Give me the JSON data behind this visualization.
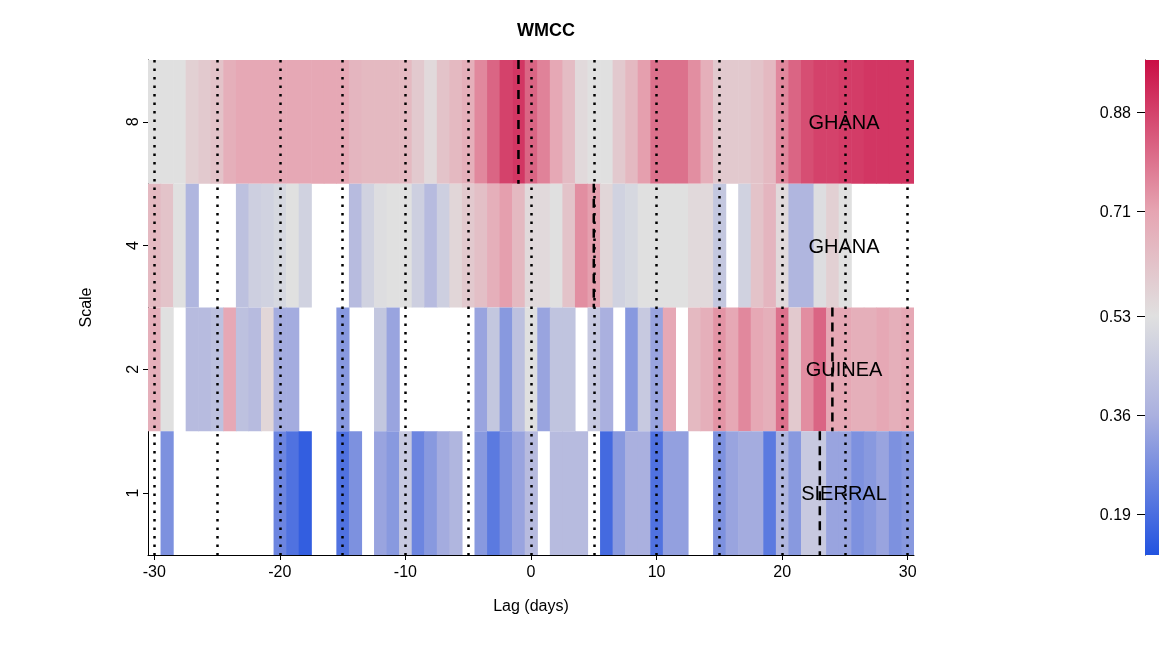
{
  "chart_data": {
    "type": "heatmap",
    "title": "WMCC",
    "xlabel": "Lag (days)",
    "ylabel": "Scale",
    "x": [
      -30,
      -29,
      -28,
      -27,
      -26,
      -25,
      -24,
      -23,
      -22,
      -21,
      -20,
      -19,
      -18,
      -17,
      -16,
      -15,
      -14,
      -13,
      -12,
      -11,
      -10,
      -9,
      -8,
      -7,
      -6,
      -5,
      -4,
      -3,
      -2,
      -1,
      0,
      1,
      2,
      3,
      4,
      5,
      6,
      7,
      8,
      9,
      10,
      11,
      12,
      13,
      14,
      15,
      16,
      17,
      18,
      19,
      20,
      21,
      22,
      23,
      24,
      25,
      26,
      27,
      28,
      29,
      30
    ],
    "xlim": [
      -30.5,
      30.5
    ],
    "xticks": [
      -30,
      -20,
      -10,
      0,
      10,
      20,
      30
    ],
    "y_categories": [
      "8",
      "4",
      "2",
      "1"
    ],
    "cells": [
      [
        0.53,
        0.53,
        0.53,
        0.58,
        0.6,
        0.62,
        0.68,
        0.7,
        0.7,
        0.7,
        0.7,
        0.7,
        0.7,
        0.7,
        0.7,
        0.7,
        0.66,
        0.65,
        0.65,
        0.65,
        0.65,
        0.6,
        0.55,
        0.62,
        0.65,
        0.68,
        0.76,
        0.82,
        0.88,
        0.9,
        0.82,
        0.77,
        0.7,
        0.64,
        0.55,
        0.53,
        0.53,
        0.6,
        0.65,
        0.72,
        0.8,
        0.8,
        0.8,
        0.75,
        0.68,
        0.6,
        0.6,
        0.6,
        0.62,
        0.65,
        0.76,
        0.82,
        0.86,
        0.88,
        0.88,
        0.89,
        0.89,
        0.9,
        0.9,
        0.9,
        0.9
      ],
      [
        0.65,
        0.62,
        0.53,
        0.38,
        null,
        null,
        null,
        0.42,
        0.47,
        0.48,
        0.5,
        0.53,
        0.48,
        null,
        null,
        null,
        0.4,
        0.48,
        0.52,
        0.53,
        0.53,
        0.47,
        0.4,
        0.47,
        0.56,
        0.6,
        0.63,
        0.68,
        0.72,
        0.65,
        0.55,
        0.55,
        0.53,
        0.62,
        0.75,
        0.72,
        0.56,
        0.48,
        0.5,
        0.53,
        0.53,
        0.53,
        0.53,
        0.55,
        0.55,
        0.44,
        null,
        0.48,
        0.62,
        0.66,
        0.55,
        0.38,
        0.38,
        0.52,
        0.58,
        0.53,
        null,
        null,
        null,
        null,
        null
      ],
      [
        0.68,
        0.53,
        null,
        0.4,
        0.4,
        0.42,
        0.7,
        0.42,
        0.4,
        0.56,
        0.35,
        0.35,
        null,
        null,
        null,
        0.3,
        null,
        null,
        0.44,
        0.33,
        null,
        null,
        null,
        null,
        null,
        null,
        0.33,
        0.44,
        0.3,
        0.42,
        0.53,
        0.33,
        0.43,
        0.43,
        null,
        0.45,
        0.36,
        null,
        0.3,
        0.45,
        0.33,
        0.7,
        null,
        0.65,
        0.68,
        0.74,
        0.7,
        0.76,
        0.7,
        0.68,
        0.8,
        0.6,
        0.75,
        0.82,
        0.7,
        0.7,
        0.68,
        0.68,
        0.7,
        0.68,
        0.7
      ],
      [
        null,
        0.28,
        null,
        null,
        null,
        null,
        null,
        null,
        null,
        null,
        0.25,
        0.2,
        0.15,
        null,
        null,
        0.2,
        0.28,
        null,
        0.33,
        0.3,
        0.45,
        0.25,
        0.3,
        0.35,
        0.38,
        null,
        0.3,
        0.22,
        0.28,
        0.33,
        0.4,
        null,
        0.4,
        0.4,
        0.4,
        null,
        0.18,
        0.3,
        0.36,
        0.36,
        0.2,
        0.32,
        0.32,
        null,
        null,
        0.28,
        0.33,
        0.35,
        0.35,
        0.22,
        0.38,
        0.3,
        0.45,
        0.45,
        0.33,
        0.33,
        0.28,
        0.3,
        0.33,
        0.28,
        0.3
      ]
    ],
    "clim": [
      0.12,
      0.97
    ],
    "cticks": [
      0.19,
      0.36,
      0.53,
      0.71,
      0.88
    ],
    "colors": [
      "#4a6ee0",
      "#aab0df",
      "#e0e0e0",
      "#e6a5b2",
      "#d4426b"
    ],
    "ref_lines": [
      {
        "axis": "x",
        "value": -1,
        "line_style": "dashed",
        "color": "#000000"
      },
      {
        "axis": "x",
        "value": 5,
        "line_style": "dashed",
        "color": "#000000"
      },
      {
        "axis": "x",
        "value": 24,
        "line_style": "dashed",
        "color": "#000000"
      },
      {
        "axis": "x",
        "value": 23,
        "line_style": "dashed",
        "color": "#000000"
      },
      {
        "axis": "x",
        "value": -30,
        "line_style": "dotted",
        "color": "#000000"
      },
      {
        "axis": "x",
        "value": -25,
        "line_style": "dotted",
        "color": "#000000"
      },
      {
        "axis": "x",
        "value": -20,
        "line_style": "dotted",
        "color": "#000000"
      },
      {
        "axis": "x",
        "value": -15,
        "line_style": "dotted",
        "color": "#000000"
      },
      {
        "axis": "x",
        "value": -10,
        "line_style": "dotted",
        "color": "#000000"
      },
      {
        "axis": "x",
        "value": -5,
        "line_style": "dotted",
        "color": "#000000"
      },
      {
        "axis": "x",
        "value": 0,
        "line_style": "dotted",
        "color": "#000000"
      },
      {
        "axis": "x",
        "value": 5,
        "line_style": "dotted",
        "color": "#000000"
      },
      {
        "axis": "x",
        "value": 10,
        "line_style": "dotted",
        "color": "#000000"
      },
      {
        "axis": "x",
        "value": 15,
        "line_style": "dotted",
        "color": "#000000"
      },
      {
        "axis": "x",
        "value": 20,
        "line_style": "dotted",
        "color": "#000000"
      },
      {
        "axis": "x",
        "value": 25,
        "line_style": "dotted",
        "color": "#000000"
      },
      {
        "axis": "x",
        "value": 30,
        "line_style": "dotted",
        "color": "#000000"
      }
    ],
    "annotations": [
      "GHANA",
      "GHANA",
      "GUINEA",
      "SIERRAL"
    ]
  }
}
